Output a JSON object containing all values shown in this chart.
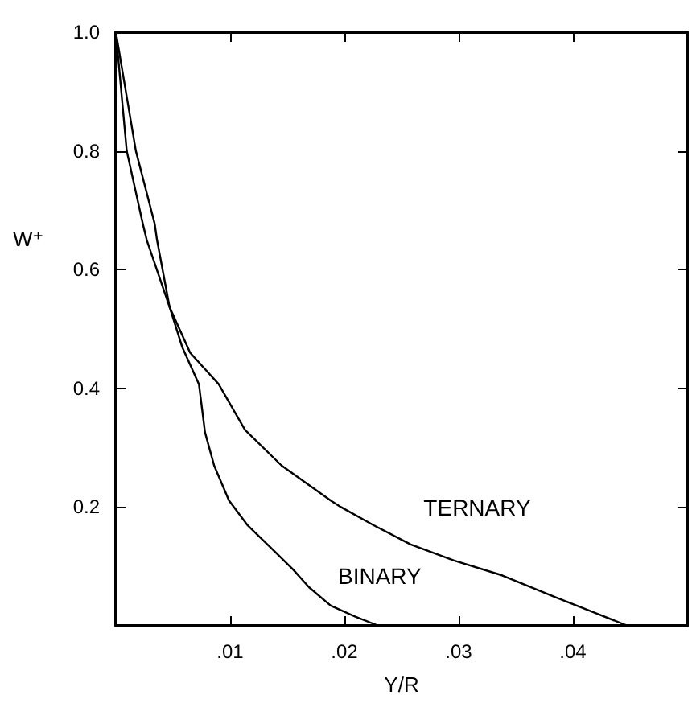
{
  "chart_data": {
    "type": "line",
    "xlabel": "Y/R",
    "ylabel": "W⁺",
    "xlim": [
      0,
      0.05
    ],
    "ylim": [
      0,
      1
    ],
    "xticks": [
      {
        "value": 0.01,
        "label": ".01"
      },
      {
        "value": 0.02,
        "label": ".02"
      },
      {
        "value": 0.03,
        "label": ".03"
      },
      {
        "value": 0.04,
        "label": ".04"
      }
    ],
    "yticks": [
      0.2,
      0.4,
      0.6,
      0.8,
      {
        "value": 1,
        "label": "1.0"
      }
    ],
    "grid": false,
    "legend": false,
    "marker": "none",
    "line_style": "solid",
    "series": [
      {
        "name": "BINARY",
        "color": "#000000",
        "x": [
          0,
          0.00175,
          0.0034,
          0.0036,
          0.0047,
          0.0058,
          0.00727,
          0.0078,
          0.0086,
          0.0099,
          0.0115,
          0.0137,
          0.0155,
          0.0169,
          0.0188,
          0.021,
          0.023
        ],
        "values": [
          1,
          0.8,
          0.677,
          0.65,
          0.537,
          0.47,
          0.407,
          0.326,
          0.27,
          0.211,
          0.17,
          0.129,
          0.095,
          0.065,
          0.034,
          0.015,
          0
        ]
      },
      {
        "name": "TERNARY",
        "color": "#000000",
        "x": [
          0,
          0.00095,
          0.00236,
          0.0027,
          0.0047,
          0.0065,
          0.009,
          0.0113,
          0.0145,
          0.0188,
          0.0197,
          0.0225,
          0.0258,
          0.0296,
          0.0338,
          0.0385,
          0.0448
        ],
        "values": [
          1,
          0.8,
          0.677,
          0.65,
          0.537,
          0.46,
          0.407,
          0.33,
          0.27,
          0.211,
          0.2,
          0.17,
          0.137,
          0.11,
          0.085,
          0.048,
          0
        ]
      }
    ]
  }
}
